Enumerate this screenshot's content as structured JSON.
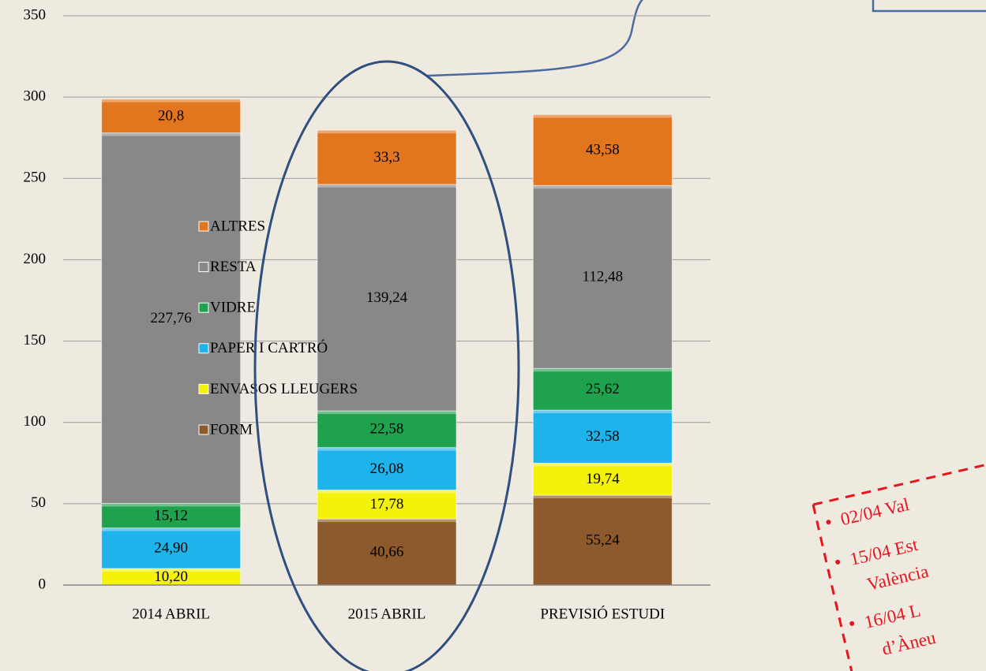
{
  "chart_data": {
    "type": "stacked_bar",
    "categories": [
      "2014 ABRIL",
      "2015 ABRIL",
      "PREVISIÓ ESTUDI"
    ],
    "series": [
      {
        "name": "FORM",
        "color": "#8c5a2c",
        "values": [
          null,
          40.66,
          55.24
        ],
        "value_labels": [
          null,
          "40,66",
          "55,24"
        ]
      },
      {
        "name": "ENVASOS LLEUGERS",
        "color": "#f4f20a",
        "values": [
          10.2,
          17.78,
          19.74
        ],
        "value_labels": [
          "10,20",
          "17,78",
          "19,74"
        ]
      },
      {
        "name": "PAPER I CARTRÓ",
        "color": "#1eb3ea",
        "values": [
          24.9,
          26.08,
          32.58
        ],
        "value_labels": [
          "24,90",
          "26,08",
          "32,58"
        ]
      },
      {
        "name": "VIDRE",
        "color": "#1fa24e",
        "values": [
          15.12,
          22.58,
          25.62
        ],
        "value_labels": [
          "15,12",
          "22,58",
          "25,62"
        ]
      },
      {
        "name": "RESTA",
        "color": "#888888",
        "values": [
          227.76,
          139.24,
          112.48
        ],
        "value_labels": [
          "227,76",
          "139,24",
          "112,48"
        ]
      },
      {
        "name": "ALTRES",
        "color": "#e2761e",
        "values": [
          20.8,
          33.3,
          43.58
        ],
        "value_labels": [
          "20,8",
          "33,3",
          "43,58"
        ]
      }
    ],
    "ylim": [
      0,
      350
    ],
    "yticks": [
      0,
      50,
      100,
      150,
      200,
      250,
      300,
      350
    ],
    "grid": true,
    "legend": "right",
    "annotations": [
      "02/04 Val",
      "15/04 Est",
      "València",
      "16/04 L",
      "d’Àneu"
    ]
  }
}
